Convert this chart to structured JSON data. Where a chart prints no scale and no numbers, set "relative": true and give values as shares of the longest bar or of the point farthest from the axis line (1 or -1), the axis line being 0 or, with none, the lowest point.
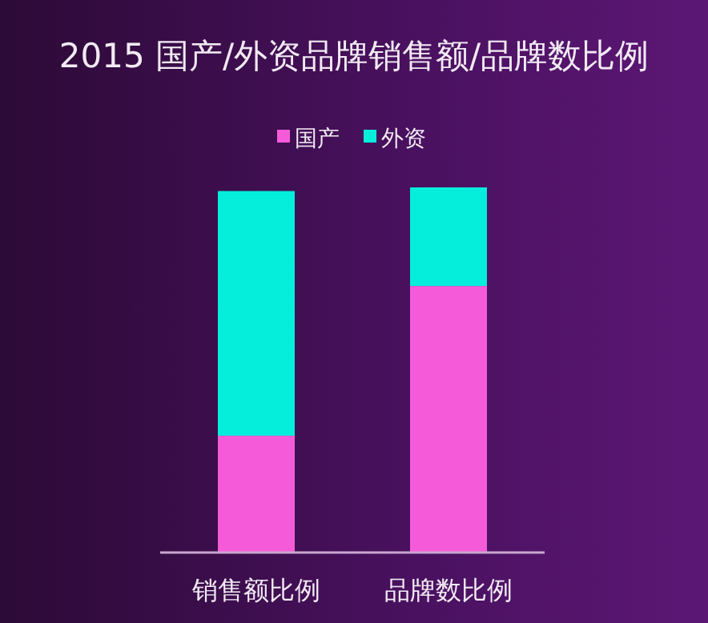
{
  "chart_data": {
    "type": "bar",
    "title": "2015 国产/外资品牌销售额/品牌数比例",
    "categories": [
      "销售额比例",
      "品牌数比例"
    ],
    "stacked": true,
    "relative": true,
    "legend": "top",
    "series": [
      {
        "name": "国产",
        "color": "#f55bd8",
        "values": [
          0.32,
          0.73
        ]
      },
      {
        "name": "外资",
        "color": "#05eedc",
        "values": [
          0.67,
          0.27
        ]
      }
    ]
  }
}
